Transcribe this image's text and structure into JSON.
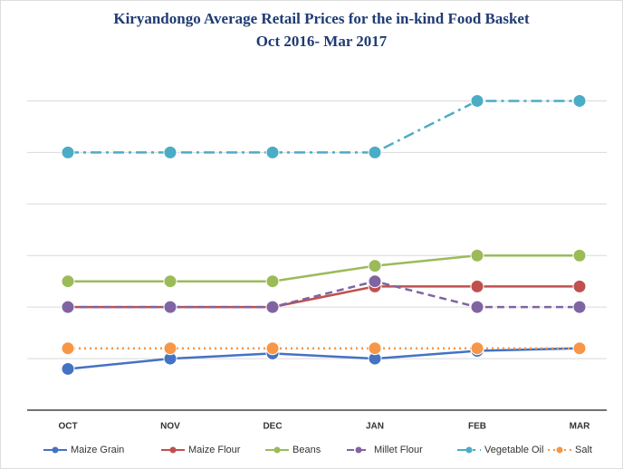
{
  "chart_data": {
    "type": "line",
    "title": "Kiryandongo Average Retail Prices for the in-kind Food Basket",
    "subtitle": "Oct 2016- Mar 2017",
    "categories": [
      "OCT",
      "NOV",
      "DEC",
      "JAN",
      "FEB",
      "MAR"
    ],
    "series": [
      {
        "name": "Maize Grain",
        "color": "#4472c4",
        "style": "solid",
        "values": [
          800,
          1000,
          1100,
          1000,
          1150,
          1200
        ]
      },
      {
        "name": "Maize Flour",
        "color": "#c0504d",
        "style": "solid",
        "values": [
          2000,
          2000,
          2000,
          2400,
          2400,
          2400
        ]
      },
      {
        "name": "Beans",
        "color": "#9bbb59",
        "style": "solid",
        "values": [
          2500,
          2500,
          2500,
          2800,
          3000,
          3000
        ]
      },
      {
        "name": "Millet Flour",
        "color": "#8064a2",
        "style": "dashed",
        "values": [
          2000,
          2000,
          2000,
          2500,
          2000,
          2000
        ]
      },
      {
        "name": "Vegetable Oil",
        "color": "#4bacc6",
        "style": "dashdot",
        "values": [
          5000,
          5000,
          5000,
          5000,
          6000,
          6000
        ]
      },
      {
        "name": "Salt",
        "color": "#f79646",
        "style": "dotted",
        "values": [
          1200,
          1200,
          1200,
          1200,
          1200,
          1200
        ]
      }
    ],
    "ylim": [
      0,
      6500
    ],
    "yticks": [
      1000,
      2000,
      3000,
      4000,
      5000,
      6000
    ],
    "grid": true,
    "legend": "bottom"
  }
}
